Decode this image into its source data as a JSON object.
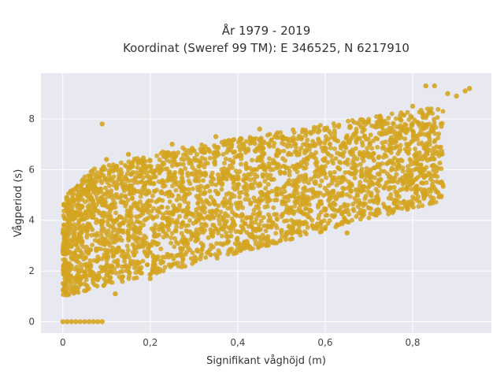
{
  "chart_data": {
    "type": "scatter",
    "title_line1": "År 1979 - 2019",
    "title_line2": "Koordinat (Sweref 99 TM): E 346525, N 6217910",
    "xlabel": "Signifikant våghöjd (m)",
    "ylabel": "Vågperiod (s)",
    "xlim": [
      -0.05,
      0.98
    ],
    "ylim": [
      -0.45,
      9.8
    ],
    "x_ticks": [
      {
        "value": 0,
        "label": "0"
      },
      {
        "value": 0.2,
        "label": "0,2"
      },
      {
        "value": 0.4,
        "label": "0,4"
      },
      {
        "value": 0.6,
        "label": "0,6"
      },
      {
        "value": 0.8,
        "label": "0,8"
      }
    ],
    "y_ticks": [
      {
        "value": 0,
        "label": "0"
      },
      {
        "value": 2,
        "label": "2"
      },
      {
        "value": 4,
        "label": "4"
      },
      {
        "value": 6,
        "label": "6"
      },
      {
        "value": 8,
        "label": "8"
      }
    ],
    "grid": true,
    "marker_color": "#D4A520",
    "plot_background": "#E8E8F0",
    "series": [
      {
        "x": [
          0.0,
          0.01,
          0.02,
          0.03,
          0.04,
          0.05,
          0.06,
          0.07,
          0.08,
          0.09,
          0.09,
          0.12,
          0.2,
          0.3,
          0.4,
          0.5,
          0.55,
          0.6,
          0.65,
          0.67,
          0.7,
          0.75,
          0.8,
          0.83,
          0.85,
          0.88,
          0.9,
          0.92,
          0.93,
          0.02,
          0.05,
          0.1,
          0.15,
          0.25,
          0.35,
          0.45
        ],
        "y": [
          0.0,
          0.0,
          0.0,
          0.0,
          0.0,
          0.0,
          0.0,
          0.0,
          0.0,
          0.0,
          7.8,
          1.1,
          1.7,
          2.4,
          3.0,
          3.6,
          3.9,
          4.4,
          3.5,
          5.2,
          6.5,
          7.5,
          8.5,
          9.3,
          9.3,
          9.0,
          8.9,
          9.1,
          9.2,
          1.2,
          5.2,
          6.4,
          6.6,
          7.0,
          7.3,
          7.6
        ]
      }
    ]
  }
}
